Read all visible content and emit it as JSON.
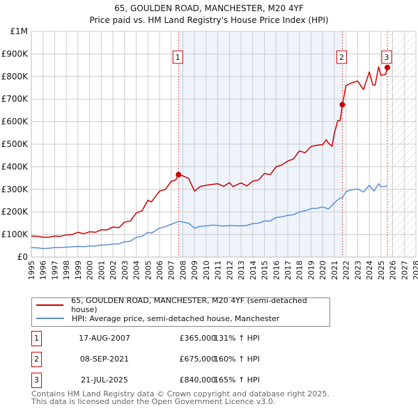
{
  "chart_data": {
    "type": "line",
    "title": "65, GOULDEN ROAD, MANCHESTER, M20 4YF",
    "subtitle": "Price paid vs. HM Land Registry's House Price Index (HPI)",
    "xlim": [
      1995,
      2028
    ],
    "ylim": [
      0,
      1000000
    ],
    "x_ticks": [
      "1995",
      "1996",
      "1997",
      "1998",
      "1999",
      "2000",
      "2001",
      "2002",
      "2003",
      "2004",
      "2005",
      "2006",
      "2007",
      "2008",
      "2009",
      "2010",
      "2011",
      "2012",
      "2013",
      "2014",
      "2015",
      "2016",
      "2017",
      "2018",
      "2019",
      "2020",
      "2021",
      "2022",
      "2023",
      "2024",
      "2025",
      "2026",
      "2027",
      "2028"
    ],
    "y_ticks": [
      {
        "value": 0,
        "label": "£0"
      },
      {
        "value": 100000,
        "label": "£100K"
      },
      {
        "value": 200000,
        "label": "£200K"
      },
      {
        "value": 300000,
        "label": "£300K"
      },
      {
        "value": 400000,
        "label": "£400K"
      },
      {
        "value": 500000,
        "label": "£500K"
      },
      {
        "value": 600000,
        "label": "£600K"
      },
      {
        "value": 700000,
        "label": "£700K"
      },
      {
        "value": 800000,
        "label": "£800K"
      },
      {
        "value": 900000,
        "label": "£900K"
      },
      {
        "value": 1000000,
        "label": "£1M"
      }
    ],
    "grid": true,
    "shaded_region": [
      2007.63,
      2021.69
    ],
    "hatched_from": 2025.55,
    "series": [
      {
        "name": "65, GOULDEN ROAD, MANCHESTER, M20 4YF (semi-detached house)",
        "color": "#cc0000",
        "x": [
          1995,
          1995.5,
          1996,
          1996.5,
          1997,
          1997.5,
          1998,
          1998.5,
          1999,
          1999.5,
          2000,
          2000.5,
          2001,
          2001.5,
          2002,
          2002.5,
          2003,
          2003.5,
          2004,
          2004.5,
          2005,
          2005.3,
          2006,
          2006.5,
          2007,
          2007.4,
          2007.63,
          2008,
          2008.5,
          2009,
          2009.5,
          2010,
          2010.5,
          2011,
          2011.5,
          2012,
          2012.3,
          2012.7,
          2013,
          2013.5,
          2014,
          2014.5,
          2015,
          2015.5,
          2016,
          2016.5,
          2017,
          2017.5,
          2018,
          2018.5,
          2019,
          2019.5,
          2020,
          2020.3,
          2020.5,
          2020.8,
          2021,
          2021.3,
          2021.5,
          2021.69,
          2022,
          2022.5,
          2023,
          2023.5,
          2024,
          2024.3,
          2024.5,
          2024.8,
          2025,
          2025.4,
          2025.55
        ],
        "y": [
          93000,
          92000,
          88000,
          88000,
          93000,
          92000,
          98000,
          100000,
          110000,
          103000,
          112000,
          110000,
          121000,
          120000,
          133000,
          130000,
          155000,
          160000,
          195000,
          205000,
          252000,
          244000,
          292000,
          300000,
          335000,
          342000,
          365000,
          360000,
          348000,
          292000,
          313000,
          318000,
          322000,
          325000,
          313000,
          330000,
          312000,
          322000,
          328000,
          315000,
          336000,
          342000,
          370000,
          365000,
          400000,
          408000,
          425000,
          435000,
          470000,
          462000,
          490000,
          495000,
          498000,
          520000,
          505000,
          490000,
          548000,
          605000,
          605000,
          675000,
          760000,
          772000,
          780000,
          742000,
          820000,
          762000,
          762000,
          843000,
          805000,
          810000,
          840000
        ]
      },
      {
        "name": "HPI: Average price, semi-detached house, Manchester",
        "color": "#5b8fd6",
        "x": [
          1995,
          1995.5,
          1996,
          1996.5,
          1997,
          1997.5,
          1998,
          1998.5,
          1999,
          1999.5,
          2000,
          2000.5,
          2001,
          2001.5,
          2002,
          2002.5,
          2003,
          2003.5,
          2004,
          2004.5,
          2005,
          2005.3,
          2006,
          2006.5,
          2007,
          2007.63,
          2008,
          2008.5,
          2009,
          2009.5,
          2010,
          2010.5,
          2011,
          2011.5,
          2012,
          2012.5,
          2013,
          2013.5,
          2014,
          2014.5,
          2015,
          2015.5,
          2016,
          2016.5,
          2017,
          2017.5,
          2018,
          2018.5,
          2019,
          2019.5,
          2020,
          2020.5,
          2021,
          2021.5,
          2021.69,
          2022,
          2022.5,
          2023,
          2023.5,
          2024,
          2024.4,
          2024.8,
          2025,
          2025.4,
          2025.55
        ],
        "y": [
          42000,
          41000,
          38000,
          39000,
          42000,
          42000,
          44000,
          45000,
          47000,
          46000,
          49000,
          49000,
          53000,
          54000,
          58000,
          58000,
          68000,
          70000,
          87000,
          92000,
          110000,
          106000,
          128000,
          135000,
          145000,
          158000,
          155000,
          150000,
          128000,
          136000,
          138000,
          141000,
          140000,
          137000,
          140000,
          139000,
          138000,
          140000,
          148000,
          150000,
          160000,
          160000,
          175000,
          178000,
          185000,
          188000,
          200000,
          205000,
          215000,
          216000,
          222000,
          213000,
          240000,
          262000,
          262000,
          290000,
          298000,
          302000,
          288000,
          318000,
          292000,
          325000,
          312000,
          312000,
          318000
        ]
      }
    ],
    "sales": [
      {
        "label": "1",
        "x": 2007.63,
        "value": 365000
      },
      {
        "label": "2",
        "x": 2021.69,
        "value": 675000
      },
      {
        "label": "3",
        "x": 2025.55,
        "value": 840000
      }
    ]
  },
  "legend": {
    "property": "65, GOULDEN ROAD, MANCHESTER, M20 4YF (semi-detached house)",
    "hpi": "HPI: Average price, semi-detached house, Manchester"
  },
  "table": [
    {
      "num": "1",
      "date": "17-AUG-2007",
      "price": "£365,000",
      "hpi": "131% ↑ HPI"
    },
    {
      "num": "2",
      "date": "08-SEP-2021",
      "price": "£675,000",
      "hpi": "160% ↑ HPI"
    },
    {
      "num": "3",
      "date": "21-JUL-2025",
      "price": "£840,000",
      "hpi": "165% ↑ HPI"
    }
  ],
  "footer": {
    "line1": "Contains HM Land Registry data © Crown copyright and database right 2025.",
    "line2": "This data is licensed under the Open Government Licence v3.0."
  }
}
